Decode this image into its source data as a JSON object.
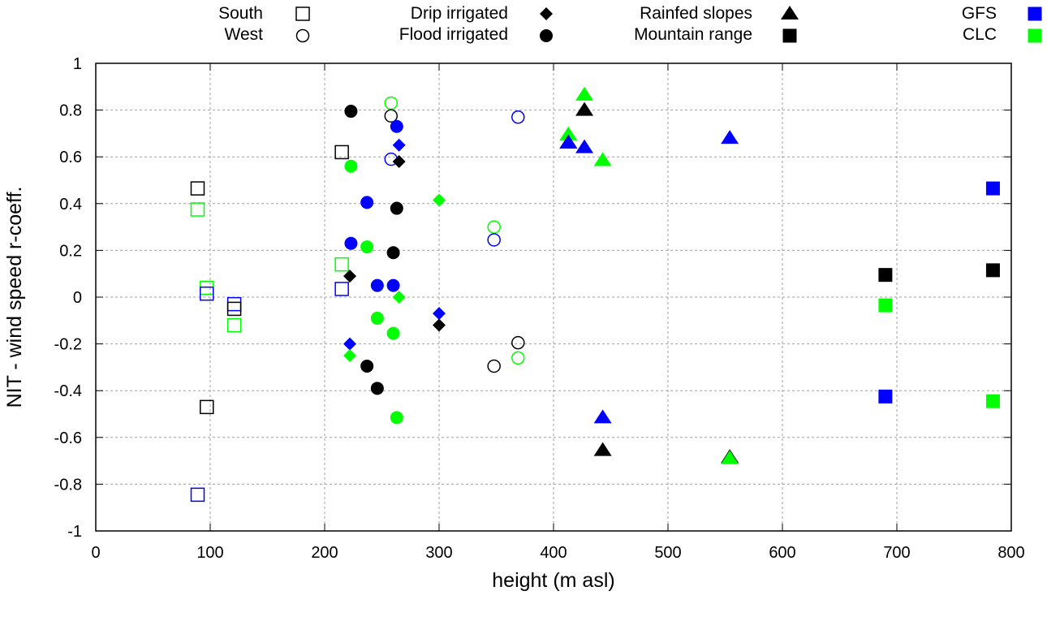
{
  "chart_data": {
    "type": "scatter",
    "title": "",
    "xlabel": "height (m asl)",
    "ylabel": "NIT - wind speed r-coeff.",
    "xlim": [
      0,
      800
    ],
    "ylim": [
      -1,
      1
    ],
    "grid": true,
    "xticks": [
      0,
      100,
      200,
      300,
      400,
      500,
      600,
      700,
      800
    ],
    "xtick_labels": [
      "0",
      "100",
      "200",
      "300",
      "400",
      "500",
      "600",
      "700",
      "800"
    ],
    "yticks": [
      1,
      0.8,
      0.6,
      0.4,
      0.2,
      0,
      -0.2,
      -0.4,
      -0.6,
      -0.8,
      -1
    ],
    "ytick_labels": [
      "1",
      "0.8",
      "0.6",
      "0.4",
      "0.2",
      "0",
      "-0.2",
      "-0.4",
      "-0.6",
      "-0.8",
      "-1"
    ],
    "legend_position": "top",
    "legend": {
      "shapes": [
        {
          "label": "South",
          "marker": "open-square"
        },
        {
          "label": "West",
          "marker": "open-circle"
        },
        {
          "label": "Drip irrigated",
          "marker": "diamond"
        },
        {
          "label": "Flood irrigated",
          "marker": "circle"
        },
        {
          "label": "Rainfed slopes",
          "marker": "triangle"
        },
        {
          "label": "Mountain range",
          "marker": "square"
        }
      ],
      "colors": [
        {
          "label": "GFS",
          "color": "#0000ff"
        },
        {
          "label": "CLC",
          "color": "#00ff00"
        }
      ]
    },
    "colors": {
      "black": "#000000",
      "GFS": "#0000ff",
      "CLC": "#00ff00"
    },
    "series": [
      {
        "name": "South",
        "marker": "open-square",
        "points": [
          {
            "x": 89,
            "y": 0.465,
            "c": "black"
          },
          {
            "x": 89,
            "y": 0.375,
            "c": "CLC"
          },
          {
            "x": 89,
            "y": -0.845,
            "c": "GFS"
          },
          {
            "x": 97,
            "y": -0.47,
            "c": "black"
          },
          {
            "x": 97,
            "y": 0.04,
            "c": "CLC"
          },
          {
            "x": 97,
            "y": 0.015,
            "c": "GFS"
          },
          {
            "x": 121,
            "y": -0.03,
            "c": "GFS"
          },
          {
            "x": 121,
            "y": -0.05,
            "c": "black"
          },
          {
            "x": 121,
            "y": -0.12,
            "c": "CLC"
          },
          {
            "x": 215,
            "y": 0.62,
            "c": "black"
          },
          {
            "x": 215,
            "y": 0.14,
            "c": "CLC"
          },
          {
            "x": 215,
            "y": 0.035,
            "c": "GFS"
          }
        ]
      },
      {
        "name": "West",
        "marker": "open-circle",
        "points": [
          {
            "x": 258,
            "y": 0.83,
            "c": "CLC"
          },
          {
            "x": 258,
            "y": 0.775,
            "c": "black"
          },
          {
            "x": 258,
            "y": 0.59,
            "c": "GFS"
          },
          {
            "x": 348,
            "y": 0.3,
            "c": "CLC"
          },
          {
            "x": 348,
            "y": 0.245,
            "c": "GFS"
          },
          {
            "x": 348,
            "y": -0.295,
            "c": "black"
          },
          {
            "x": 369,
            "y": 0.77,
            "c": "GFS"
          },
          {
            "x": 369,
            "y": -0.195,
            "c": "black"
          },
          {
            "x": 369,
            "y": -0.26,
            "c": "CLC"
          }
        ]
      },
      {
        "name": "Drip irrigated",
        "marker": "diamond",
        "points": [
          {
            "x": 265,
            "y": 0.65,
            "c": "GFS"
          },
          {
            "x": 265,
            "y": 0.58,
            "c": "black"
          },
          {
            "x": 265,
            "y": 0.0,
            "c": "CLC"
          },
          {
            "x": 222,
            "y": 0.09,
            "c": "black"
          },
          {
            "x": 222,
            "y": -0.2,
            "c": "GFS"
          },
          {
            "x": 222,
            "y": -0.25,
            "c": "CLC"
          },
          {
            "x": 300,
            "y": 0.415,
            "c": "CLC"
          },
          {
            "x": 300,
            "y": -0.07,
            "c": "GFS"
          },
          {
            "x": 300,
            "y": -0.12,
            "c": "black"
          }
        ]
      },
      {
        "name": "Flood irrigated",
        "marker": "circle",
        "points": [
          {
            "x": 223,
            "y": 0.795,
            "c": "black"
          },
          {
            "x": 223,
            "y": 0.56,
            "c": "CLC"
          },
          {
            "x": 223,
            "y": 0.23,
            "c": "GFS"
          },
          {
            "x": 237,
            "y": 0.405,
            "c": "GFS"
          },
          {
            "x": 237,
            "y": 0.215,
            "c": "CLC"
          },
          {
            "x": 237,
            "y": -0.295,
            "c": "black"
          },
          {
            "x": 246,
            "y": 0.05,
            "c": "GFS"
          },
          {
            "x": 246,
            "y": -0.09,
            "c": "CLC"
          },
          {
            "x": 246,
            "y": -0.39,
            "c": "black"
          },
          {
            "x": 260,
            "y": 0.19,
            "c": "black"
          },
          {
            "x": 260,
            "y": 0.05,
            "c": "GFS"
          },
          {
            "x": 260,
            "y": -0.155,
            "c": "CLC"
          },
          {
            "x": 263,
            "y": 0.73,
            "c": "GFS"
          },
          {
            "x": 263,
            "y": 0.38,
            "c": "black"
          },
          {
            "x": 263,
            "y": -0.515,
            "c": "CLC"
          }
        ]
      },
      {
        "name": "Rainfed slopes",
        "marker": "triangle",
        "points": [
          {
            "x": 427,
            "y": 0.865,
            "c": "CLC"
          },
          {
            "x": 427,
            "y": 0.8,
            "c": "black"
          },
          {
            "x": 427,
            "y": 0.64,
            "c": "GFS"
          },
          {
            "x": 413,
            "y": 0.695,
            "c": "CLC"
          },
          {
            "x": 413,
            "y": 0.66,
            "c": "black"
          },
          {
            "x": 413,
            "y": 0.66,
            "c": "GFS"
          },
          {
            "x": 443,
            "y": 0.585,
            "c": "CLC"
          },
          {
            "x": 443,
            "y": -0.515,
            "c": "GFS"
          },
          {
            "x": 443,
            "y": -0.655,
            "c": "black"
          },
          {
            "x": 554,
            "y": 0.68,
            "c": "GFS"
          },
          {
            "x": 554,
            "y": -0.685,
            "c": "black"
          },
          {
            "x": 554,
            "y": -0.69,
            "c": "CLC"
          }
        ]
      },
      {
        "name": "Mountain range",
        "marker": "square",
        "points": [
          {
            "x": 690,
            "y": 0.095,
            "c": "black"
          },
          {
            "x": 690,
            "y": -0.035,
            "c": "CLC"
          },
          {
            "x": 690,
            "y": -0.425,
            "c": "GFS"
          },
          {
            "x": 784,
            "y": 0.465,
            "c": "GFS"
          },
          {
            "x": 784,
            "y": 0.115,
            "c": "black"
          },
          {
            "x": 784,
            "y": -0.445,
            "c": "CLC"
          }
        ]
      }
    ]
  }
}
